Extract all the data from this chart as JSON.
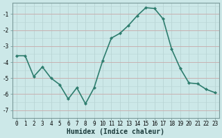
{
  "x": [
    0,
    1,
    2,
    3,
    4,
    5,
    6,
    7,
    8,
    9,
    10,
    11,
    12,
    13,
    14,
    15,
    16,
    17,
    18,
    19,
    20,
    21,
    22,
    23
  ],
  "y": [
    -3.6,
    -3.6,
    -4.9,
    -4.3,
    -5.0,
    -5.4,
    -6.3,
    -5.6,
    -6.6,
    -5.6,
    -3.9,
    -2.5,
    -2.2,
    -1.7,
    -1.1,
    -0.6,
    -0.65,
    -1.3,
    -3.2,
    -4.4,
    -5.3,
    -5.35,
    -5.7,
    -5.9
  ],
  "line_color": "#2e7d6e",
  "marker": "D",
  "marker_size": 2.2,
  "bg_color": "#cce8e8",
  "grid_minor_color": "#b8d4d4",
  "grid_major_h_color": "#c8b0b0",
  "grid_major_v_color": "#b8d4d4",
  "xlabel": "Humidex (Indice chaleur)",
  "ylabel": "",
  "title": "",
  "ylim": [
    -7.5,
    -0.3
  ],
  "xlim": [
    -0.5,
    23.5
  ],
  "yticks": [
    -7,
    -6,
    -5,
    -4,
    -3,
    -2,
    -1
  ],
  "xticks": [
    0,
    1,
    2,
    3,
    4,
    5,
    6,
    7,
    8,
    9,
    10,
    11,
    12,
    13,
    14,
    15,
    16,
    17,
    18,
    19,
    20,
    21,
    22,
    23
  ],
  "tick_fontsize": 5.5,
  "xlabel_fontsize": 7,
  "line_width": 1.2,
  "spine_color": "#7a9a9a"
}
